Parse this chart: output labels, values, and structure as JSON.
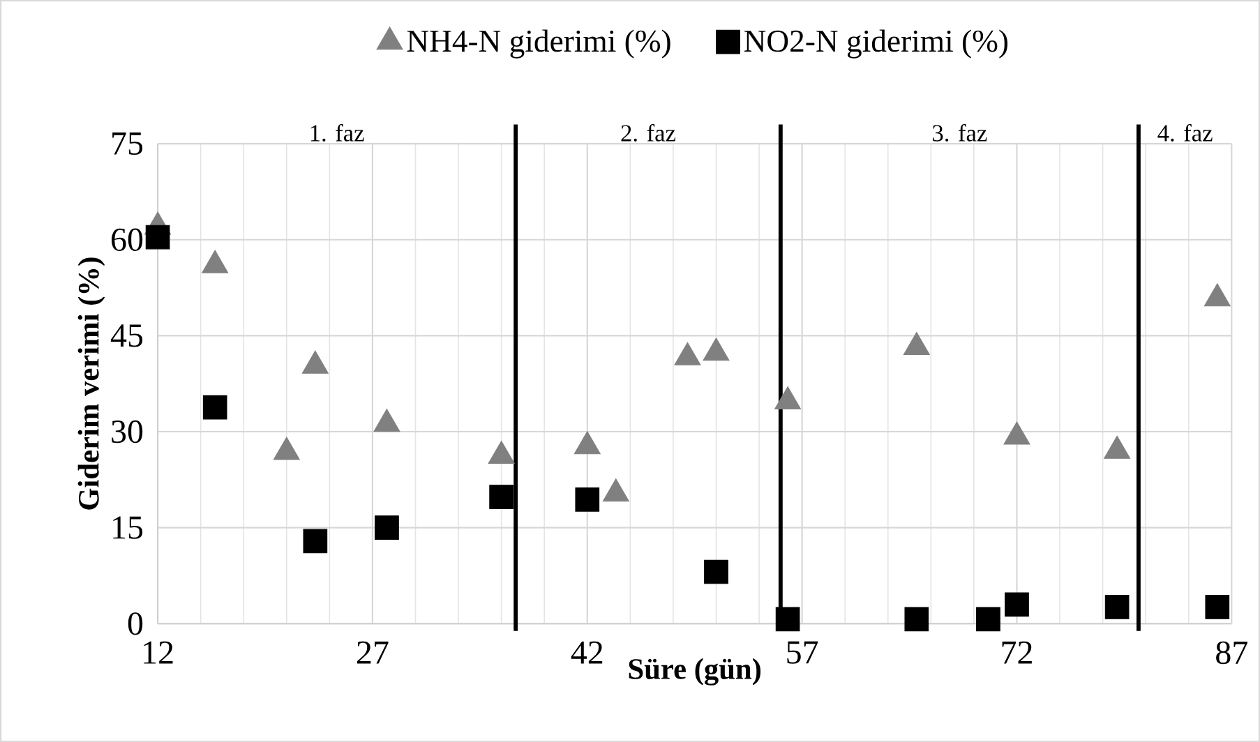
{
  "chart_data": {
    "type": "scatter",
    "xlabel": "Süre (gün)",
    "ylabel": "Giderim  verimi (%)",
    "xlim": [
      12,
      87
    ],
    "xticks": [
      12,
      27,
      42,
      57,
      72,
      87
    ],
    "ylim": [
      0,
      75
    ],
    "yticks": [
      0,
      15,
      30,
      45,
      60,
      75
    ],
    "grid": true,
    "legend": "top",
    "series": [
      {
        "name": "NH4-N giderimi (%)",
        "color": "#808080",
        "marker": "triangle",
        "x": [
          12,
          16,
          21,
          23,
          28,
          36,
          42,
          44,
          49,
          51,
          56,
          65,
          72,
          79,
          86
        ],
        "values": [
          62,
          56,
          26.8,
          40.3,
          31.2,
          26.2,
          27.7,
          20.3,
          41.6,
          42.3,
          34.7,
          43.2,
          29.2,
          27,
          50.8
        ]
      },
      {
        "name": "NO2-N giderimi (%)",
        "color": "#000000",
        "marker": "square",
        "x": [
          12,
          16,
          23,
          28,
          36,
          42,
          51,
          56,
          65,
          70,
          72,
          79,
          86
        ],
        "values": [
          60.4,
          33.8,
          12.9,
          15,
          19.8,
          19.4,
          8.1,
          0.7,
          0.7,
          0.7,
          3,
          2.6,
          2.6
        ]
      }
    ],
    "ref_lines": [
      {
        "axis": "x",
        "value": 37,
        "color": "#000000"
      },
      {
        "axis": "x",
        "value": 55.5,
        "color": "#000000"
      },
      {
        "axis": "x",
        "value": 80.5,
        "color": "#000000"
      }
    ],
    "annotations": [
      "1. faz",
      "2. faz",
      "3. faz",
      "4. faz"
    ]
  }
}
